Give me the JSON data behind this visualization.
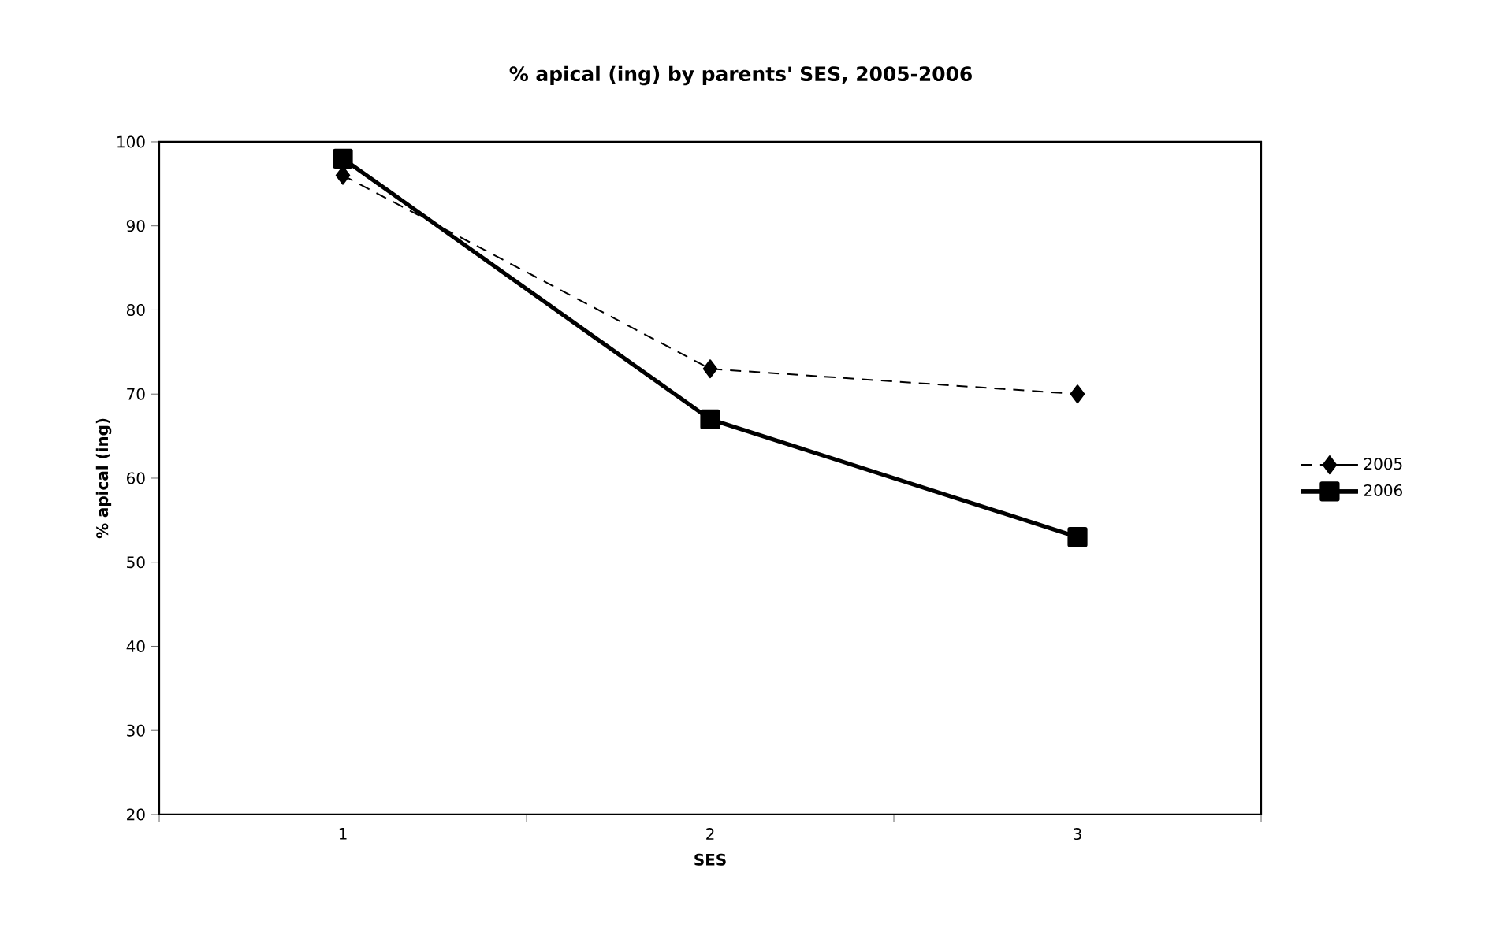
{
  "chart_data": {
    "type": "line",
    "title": "% apical (ing) by parents' SES, 2005-2006",
    "xlabel": "SES",
    "ylabel": "% apical (ing)",
    "categories": [
      "1",
      "2",
      "3"
    ],
    "series": [
      {
        "name": "2005",
        "color": "#000000",
        "marker": "diamond",
        "line_style": "dashed",
        "values": [
          96,
          73,
          70
        ]
      },
      {
        "name": "2006",
        "color": "#000000",
        "marker": "square",
        "line_style": "solid",
        "values": [
          98,
          67,
          53
        ]
      }
    ],
    "ylim": [
      20,
      100
    ],
    "yticks": [
      20,
      30,
      40,
      50,
      60,
      70,
      80,
      90,
      100
    ],
    "legend": "right",
    "grid": false
  }
}
